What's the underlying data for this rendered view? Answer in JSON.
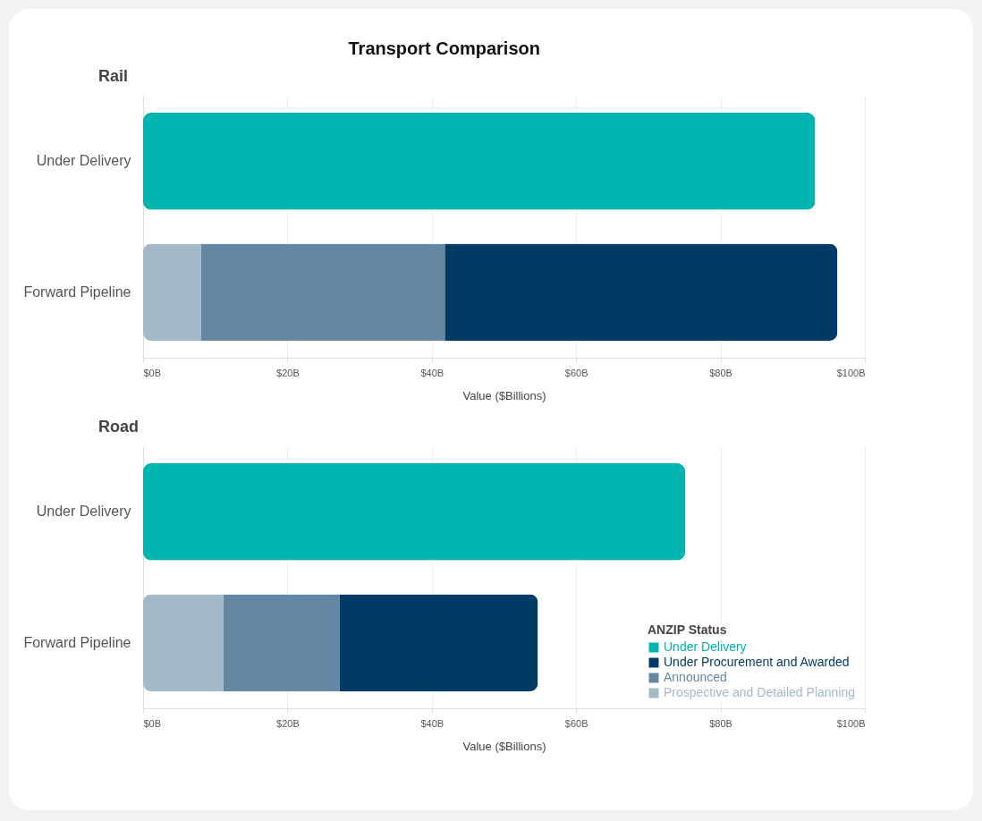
{
  "chart_data": [
    {
      "type": "bar",
      "title": "Transport Comparison",
      "subtitle": "Rail",
      "orientation": "horizontal",
      "stacked": true,
      "categories": [
        "Under Delivery",
        "Forward Pipeline"
      ],
      "xlabel": "Value ($Billions)",
      "xlim": [
        0,
        100
      ],
      "xticks": [
        {
          "value": 0,
          "label": "$0B"
        },
        {
          "value": 20,
          "label": "$20B"
        },
        {
          "value": 40,
          "label": "$40B"
        },
        {
          "value": 60,
          "label": "$60B"
        },
        {
          "value": 80,
          "label": "$80B"
        },
        {
          "value": 100,
          "label": "$100B"
        }
      ],
      "grid": "x",
      "series": [
        {
          "color": "#00b5b0",
          "values": [
            93.1,
            null
          ]
        },
        {
          "color": "#003b66",
          "values": [
            null,
            54.4
          ]
        },
        {
          "color": "#6488a3",
          "values": [
            null,
            33.8
          ]
        },
        {
          "color": "#a3b9c7",
          "values": [
            null,
            8.0
          ]
        }
      ]
    },
    {
      "type": "bar",
      "title": "Road",
      "orientation": "horizontal",
      "stacked": true,
      "categories": [
        "Under Delivery",
        "Forward Pipeline"
      ],
      "xlabel": "Value ($Billions)",
      "xlim": [
        0,
        100
      ],
      "xticks": [
        {
          "value": 0,
          "label": "$0B"
        },
        {
          "value": 20,
          "label": "$20B"
        },
        {
          "value": 40,
          "label": "$40B"
        },
        {
          "value": 60,
          "label": "$60B"
        },
        {
          "value": 80,
          "label": "$80B"
        },
        {
          "value": 100,
          "label": "$100B"
        }
      ],
      "grid": "x",
      "legend": "bottom right",
      "legend_title": "ANZIP Status",
      "series": [
        {
          "name": "Under Delivery",
          "color": "#00b5b0",
          "values": [
            75.1,
            null
          ]
        },
        {
          "name": "Under Procurement and Awarded",
          "color": "#003b66",
          "values": [
            null,
            27.5
          ]
        },
        {
          "name": "Announced",
          "color": "#6488a3",
          "values": [
            null,
            16.1
          ]
        },
        {
          "name": "Prospective and Detailed Planning",
          "color": "#a3b9c7",
          "values": [
            null,
            11.1
          ]
        }
      ]
    }
  ]
}
